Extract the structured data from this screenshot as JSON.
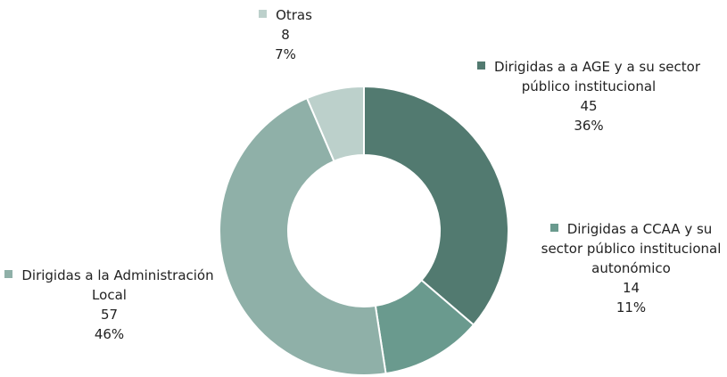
{
  "chart_data": {
    "type": "donut",
    "categories": [
      "Dirigidas a a AGE y a su sector público institucional",
      "Dirigidas a CCAA y su sector público institucional autonómico",
      "Dirigidas a la Administración Local",
      "Otras"
    ],
    "values": [
      45,
      14,
      57,
      8
    ],
    "percentages": [
      {
        "value": 36,
        "label": "36%"
      },
      {
        "value": 11,
        "label": "11%"
      },
      {
        "value": 46,
        "label": "46%"
      },
      {
        "value": 7,
        "label": "7%"
      }
    ],
    "colors": [
      "#527a70",
      "#6a9a8e",
      "#8fb0a8",
      "#bcd0cb"
    ]
  }
}
